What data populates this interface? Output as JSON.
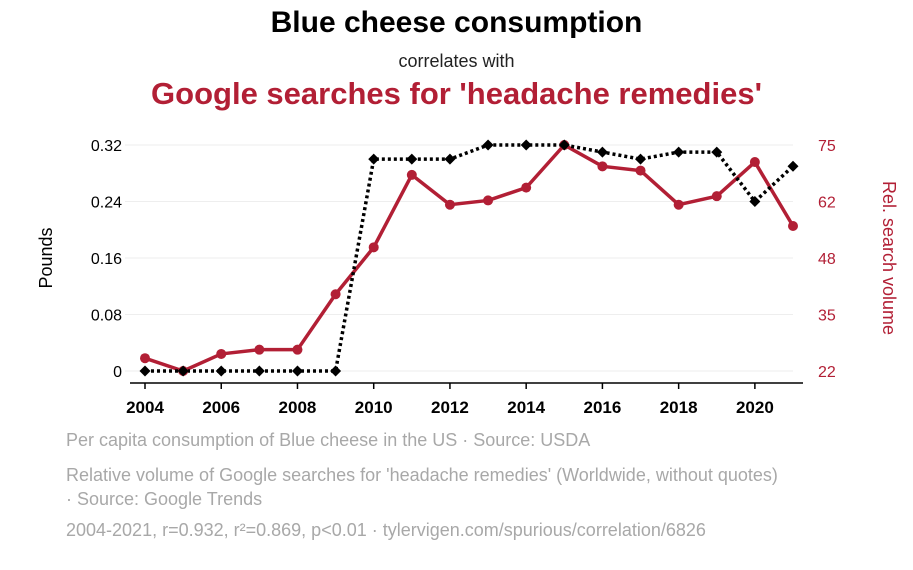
{
  "header": {
    "title": "Blue cheese consumption",
    "subtitle": "correlates with",
    "title2": "Google searches for 'headache remedies'"
  },
  "colors": {
    "series1": "#000000",
    "series2": "#b21f35",
    "axis_text": "#000000",
    "legend_text": "#a8a8a8"
  },
  "chart_data": {
    "type": "line",
    "x": [
      2004,
      2005,
      2006,
      2007,
      2008,
      2009,
      2010,
      2011,
      2012,
      2013,
      2014,
      2015,
      2016,
      2017,
      2018,
      2019,
      2020,
      2021
    ],
    "series": [
      {
        "name": "Per capita consumption of Blue cheese in the US",
        "axis": "left",
        "style": "dotted",
        "marker": "diamond",
        "values": [
          0,
          0,
          0,
          0,
          0,
          0,
          0.3,
          0.3,
          0.3,
          0.32,
          0.32,
          0.32,
          0.31,
          0.3,
          0.31,
          0.31,
          0.24,
          0.29
        ]
      },
      {
        "name": "Relative volume of Google searches for 'headache remedies'",
        "axis": "right",
        "style": "solid",
        "marker": "circle",
        "values": [
          25,
          22,
          26,
          27,
          27,
          40,
          51,
          68,
          61,
          62,
          65,
          75,
          70,
          69,
          61,
          63,
          71,
          56
        ]
      }
    ],
    "xticks": [
      "2004",
      "2006",
      "2008",
      "2010",
      "2012",
      "2014",
      "2016",
      "2018",
      "2020"
    ],
    "xlim": [
      2004,
      2021
    ],
    "yticks_left": [
      "0",
      "0.08",
      "0.16",
      "0.24",
      "0.32"
    ],
    "ylim_left": [
      0,
      0.32
    ],
    "ylabel_left": "Pounds",
    "yticks_right": [
      "22",
      "35",
      "48",
      "62",
      "75"
    ],
    "ylim_right": [
      22,
      75
    ],
    "ylabel_right": "Rel. search volume",
    "grid": true
  },
  "legend": {
    "item1": "Per capita consumption of Blue cheese in the US · Source: USDA",
    "item2": "Relative volume of Google searches for 'headache remedies' (Worldwide, without quotes) · Source: Google Trends"
  },
  "footer": "2004-2021, r=0.932, r²=0.869, p<0.01 · tylervigen.com/spurious/correlation/6826"
}
